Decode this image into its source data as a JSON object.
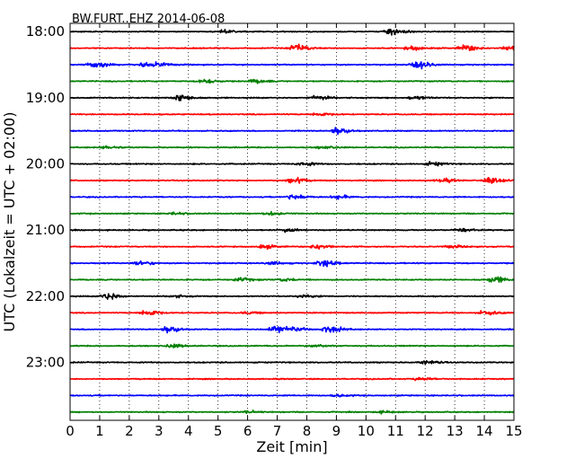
{
  "chart_data": {
    "type": "line",
    "subtype": "seismogram-dayplot",
    "title": "BW.FURT..EHZ 2014-06-08",
    "xlabel": "Zeit  [min]",
    "ylabel": "UTC (Lokalzeit = UTC + 02:00)",
    "xlim": [
      0,
      15
    ],
    "x_ticks": [
      "0",
      "1",
      "2",
      "3",
      "4",
      "5",
      "6",
      "7",
      "8",
      "9",
      "10",
      "11",
      "12",
      "13",
      "14",
      "15"
    ],
    "y_ticks": [
      "18:00",
      "19:00",
      "20:00",
      "21:00",
      "22:00",
      "23:00"
    ],
    "grid": "vertical-dotted",
    "trace_minutes_per_row": 15,
    "trace_colors": [
      "#000000",
      "#ff0000",
      "#0000ff",
      "#008000"
    ],
    "rows": [
      {
        "start": "18:00",
        "color": "#000000",
        "events": [
          {
            "t": 10.8,
            "amp": 0.9
          },
          {
            "t": 5.2,
            "amp": 0.4
          }
        ]
      },
      {
        "start": "18:15",
        "color": "#ff0000",
        "events": [
          {
            "t": 7.6,
            "amp": 1.0
          },
          {
            "t": 13.3,
            "amp": 0.9
          },
          {
            "t": 14.8,
            "amp": 0.8
          },
          {
            "t": 11.5,
            "amp": 0.6
          }
        ]
      },
      {
        "start": "18:30",
        "color": "#0000ff",
        "events": [
          {
            "t": 0.8,
            "amp": 1.0
          },
          {
            "t": 11.7,
            "amp": 1.1
          },
          {
            "t": 2.5,
            "amp": 0.6
          },
          {
            "t": 3.0,
            "amp": 0.5
          }
        ]
      },
      {
        "start": "18:45",
        "color": "#008000",
        "events": [
          {
            "t": 4.5,
            "amp": 0.6
          },
          {
            "t": 6.2,
            "amp": 0.5
          }
        ]
      },
      {
        "start": "19:00",
        "color": "#000000",
        "events": [
          {
            "t": 3.7,
            "amp": 1.0
          },
          {
            "t": 8.3,
            "amp": 0.6
          },
          {
            "t": 11.6,
            "amp": 0.5
          }
        ]
      },
      {
        "start": "19:15",
        "color": "#ff0000",
        "events": [
          {
            "t": 8.3,
            "amp": 0.5
          }
        ]
      },
      {
        "start": "19:30",
        "color": "#0000ff",
        "events": [
          {
            "t": 9.0,
            "amp": 1.0
          }
        ]
      },
      {
        "start": "19:45",
        "color": "#008000",
        "events": [
          {
            "t": 1.2,
            "amp": 0.4
          },
          {
            "t": 8.5,
            "amp": 0.4
          }
        ]
      },
      {
        "start": "20:00",
        "color": "#000000",
        "events": [
          {
            "t": 7.8,
            "amp": 0.5
          },
          {
            "t": 12.2,
            "amp": 0.5
          }
        ]
      },
      {
        "start": "20:15",
        "color": "#ff0000",
        "events": [
          {
            "t": 7.5,
            "amp": 0.8
          },
          {
            "t": 14.2,
            "amp": 1.0
          },
          {
            "t": 12.5,
            "amp": 0.5
          }
        ]
      },
      {
        "start": "20:30",
        "color": "#0000ff",
        "events": [
          {
            "t": 7.5,
            "amp": 0.8
          },
          {
            "t": 9.0,
            "amp": 0.5
          }
        ]
      },
      {
        "start": "20:45",
        "color": "#008000",
        "events": [
          {
            "t": 6.7,
            "amp": 0.5
          },
          {
            "t": 3.5,
            "amp": 0.3
          }
        ]
      },
      {
        "start": "21:00",
        "color": "#000000",
        "events": [
          {
            "t": 13.2,
            "amp": 0.5
          },
          {
            "t": 7.3,
            "amp": 0.4
          }
        ]
      },
      {
        "start": "21:15",
        "color": "#ff0000",
        "events": [
          {
            "t": 8.3,
            "amp": 0.7
          },
          {
            "t": 6.5,
            "amp": 0.5
          },
          {
            "t": 12.8,
            "amp": 0.4
          }
        ]
      },
      {
        "start": "21:30",
        "color": "#0000ff",
        "events": [
          {
            "t": 8.5,
            "amp": 1.0
          },
          {
            "t": 2.3,
            "amp": 0.6
          },
          {
            "t": 6.8,
            "amp": 0.4
          }
        ]
      },
      {
        "start": "21:45",
        "color": "#008000",
        "events": [
          {
            "t": 14.3,
            "amp": 0.9
          },
          {
            "t": 5.7,
            "amp": 0.5
          },
          {
            "t": 7.2,
            "amp": 0.4
          }
        ]
      },
      {
        "start": "22:00",
        "color": "#000000",
        "events": [
          {
            "t": 1.2,
            "amp": 1.1
          },
          {
            "t": 7.8,
            "amp": 0.4
          },
          {
            "t": 3.5,
            "amp": 0.3
          }
        ]
      },
      {
        "start": "22:15",
        "color": "#ff0000",
        "events": [
          {
            "t": 2.5,
            "amp": 0.9
          },
          {
            "t": 14.0,
            "amp": 0.6
          },
          {
            "t": 6.0,
            "amp": 0.3
          }
        ]
      },
      {
        "start": "22:30",
        "color": "#0000ff",
        "events": [
          {
            "t": 3.3,
            "amp": 1.0
          },
          {
            "t": 6.9,
            "amp": 1.0
          },
          {
            "t": 8.7,
            "amp": 1.0
          },
          {
            "t": 7.5,
            "amp": 0.6
          }
        ]
      },
      {
        "start": "22:45",
        "color": "#008000",
        "events": [
          {
            "t": 3.4,
            "amp": 0.5
          },
          {
            "t": 8.2,
            "amp": 0.3
          }
        ]
      },
      {
        "start": "23:00",
        "color": "#000000",
        "events": [
          {
            "t": 12.0,
            "amp": 0.5
          }
        ]
      },
      {
        "start": "23:15",
        "color": "#ff0000",
        "events": [
          {
            "t": 11.8,
            "amp": 0.4
          }
        ]
      },
      {
        "start": "23:30",
        "color": "#0000ff",
        "events": [
          {
            "t": 9.0,
            "amp": 0.3
          }
        ]
      },
      {
        "start": "23:45",
        "color": "#008000",
        "events": [
          {
            "t": 6.0,
            "amp": 0.3
          },
          {
            "t": 10.5,
            "amp": 0.3
          }
        ]
      }
    ]
  }
}
